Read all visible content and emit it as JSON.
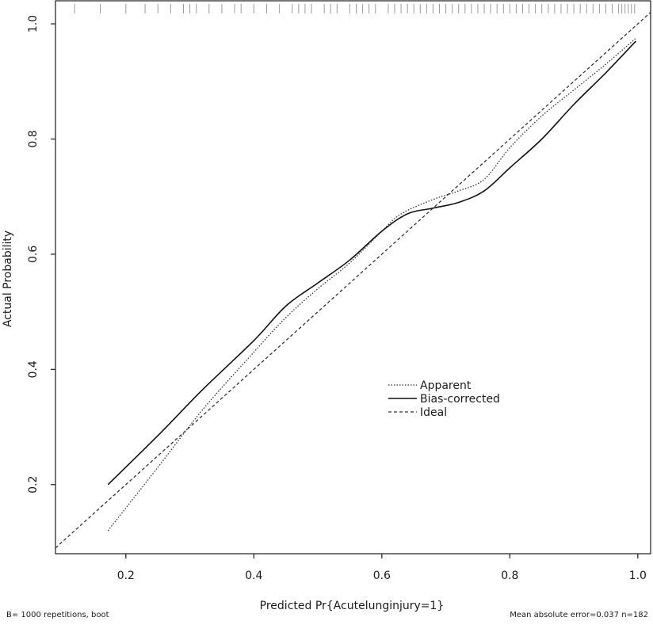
{
  "chart_data": {
    "type": "line",
    "xlabel": "Predicted Pr{Acutelunginjury=1}",
    "ylabel": "Actual Probability",
    "xlim": [
      0.09,
      1.02
    ],
    "ylim": [
      0.08,
      1.04
    ],
    "x_ticks": [
      "0.2",
      "0.4",
      "0.6",
      "0.8",
      "1.0"
    ],
    "y_ticks": [
      "0.2",
      "0.4",
      "0.6",
      "0.8",
      "1.0"
    ],
    "x_tick_values": [
      0.2,
      0.4,
      0.6,
      0.8,
      1.0
    ],
    "y_tick_values": [
      0.2,
      0.4,
      0.6,
      0.8,
      1.0
    ],
    "grid": false,
    "legend_position": "center-right",
    "series": [
      {
        "name": "Apparent",
        "style": "dotted",
        "color": "#333333",
        "points": [
          [
            0.172,
            0.12
          ],
          [
            0.25,
            0.23
          ],
          [
            0.32,
            0.33
          ],
          [
            0.4,
            0.43
          ],
          [
            0.45,
            0.49
          ],
          [
            0.5,
            0.54
          ],
          [
            0.55,
            0.585
          ],
          [
            0.6,
            0.64
          ],
          [
            0.63,
            0.67
          ],
          [
            0.68,
            0.695
          ],
          [
            0.72,
            0.71
          ],
          [
            0.76,
            0.73
          ],
          [
            0.8,
            0.785
          ],
          [
            0.85,
            0.84
          ],
          [
            0.9,
            0.885
          ],
          [
            0.95,
            0.93
          ],
          [
            0.997,
            0.975
          ]
        ]
      },
      {
        "name": "Bias-corrected",
        "style": "solid",
        "color": "#111111",
        "points": [
          [
            0.172,
            0.2
          ],
          [
            0.25,
            0.285
          ],
          [
            0.32,
            0.365
          ],
          [
            0.4,
            0.45
          ],
          [
            0.45,
            0.51
          ],
          [
            0.5,
            0.55
          ],
          [
            0.55,
            0.59
          ],
          [
            0.6,
            0.64
          ],
          [
            0.64,
            0.67
          ],
          [
            0.68,
            0.68
          ],
          [
            0.72,
            0.69
          ],
          [
            0.76,
            0.71
          ],
          [
            0.8,
            0.75
          ],
          [
            0.85,
            0.8
          ],
          [
            0.9,
            0.86
          ],
          [
            0.95,
            0.915
          ],
          [
            0.997,
            0.97
          ]
        ]
      },
      {
        "name": "Ideal",
        "style": "dashed",
        "color": "#333333",
        "points": [
          [
            0.09,
            0.09
          ],
          [
            1.02,
            1.02
          ]
        ]
      }
    ],
    "rug_x": [
      0.12,
      0.16,
      0.2,
      0.23,
      0.25,
      0.27,
      0.29,
      0.3,
      0.31,
      0.33,
      0.35,
      0.37,
      0.38,
      0.4,
      0.42,
      0.44,
      0.46,
      0.47,
      0.48,
      0.49,
      0.51,
      0.52,
      0.53,
      0.55,
      0.56,
      0.57,
      0.58,
      0.59,
      0.61,
      0.62,
      0.63,
      0.64,
      0.65,
      0.66,
      0.67,
      0.68,
      0.69,
      0.7,
      0.71,
      0.72,
      0.73,
      0.74,
      0.75,
      0.76,
      0.77,
      0.78,
      0.79,
      0.8,
      0.81,
      0.82,
      0.83,
      0.84,
      0.85,
      0.86,
      0.87,
      0.88,
      0.89,
      0.9,
      0.91,
      0.92,
      0.93,
      0.94,
      0.95,
      0.96,
      0.97,
      0.975,
      0.98,
      0.985,
      0.99,
      0.995
    ]
  },
  "footnotes": {
    "left": "B= 1000 repetitions, boot",
    "right": "Mean absolute error=0.037 n=182"
  }
}
